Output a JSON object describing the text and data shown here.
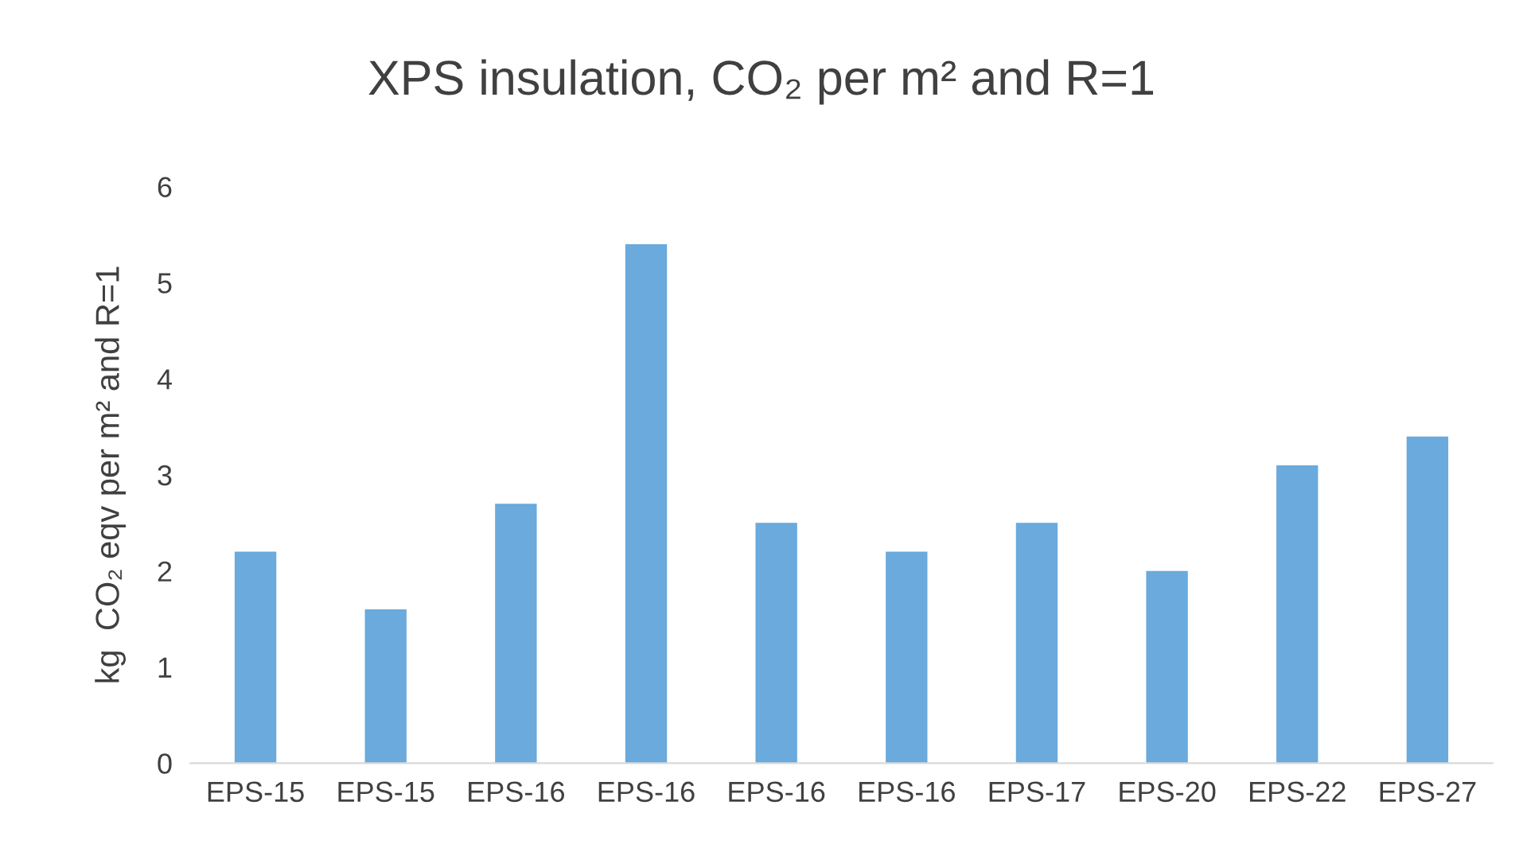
{
  "chart_data": {
    "type": "bar",
    "title": "XPS insulation, CO₂ per m² and R=1",
    "ylabel": "kg  CO₂ eqv per m² and R=1",
    "categories": [
      "EPS-15",
      "EPS-15",
      "EPS-16",
      "EPS-16",
      "EPS-16",
      "EPS-16",
      "EPS-17",
      "EPS-20",
      "EPS-22",
      "EPS-27"
    ],
    "values": [
      2.2,
      1.6,
      2.7,
      5.4,
      2.5,
      2.2,
      2.5,
      2.0,
      3.1,
      3.4
    ],
    "color": "#6aaadd",
    "ylim": [
      0,
      6
    ],
    "yticks": [
      0,
      1,
      2,
      3,
      4,
      5,
      6
    ],
    "grid": false,
    "legend": false
  }
}
